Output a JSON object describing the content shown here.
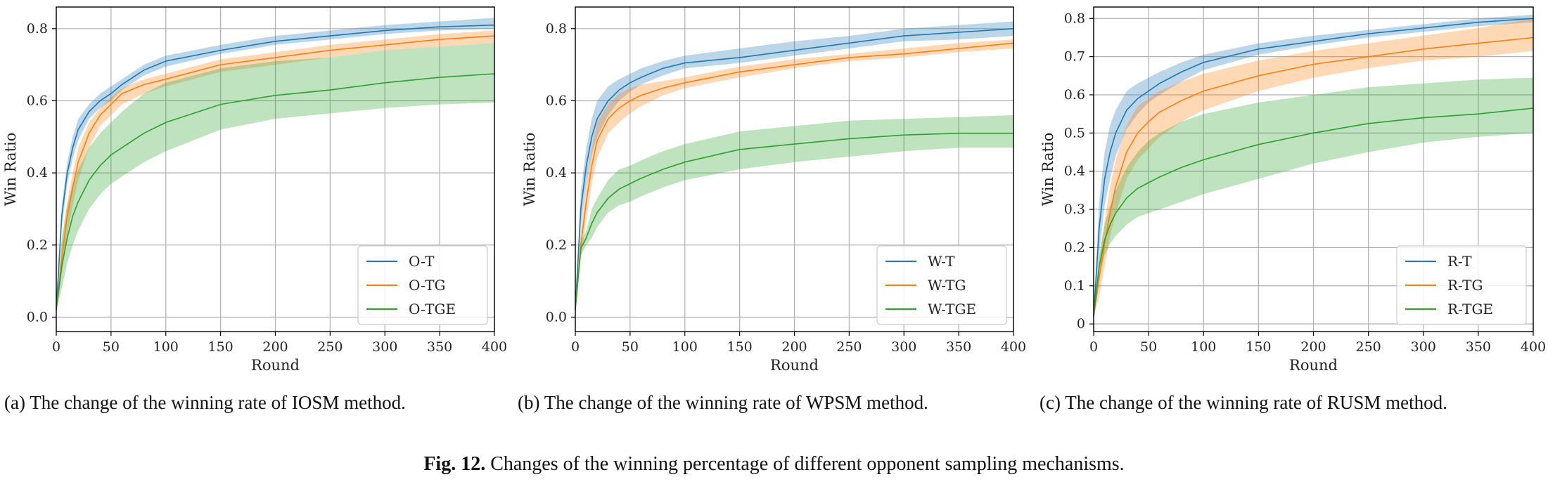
{
  "colors": {
    "T": "#1f77b4",
    "TG": "#ff7f0e",
    "TGE": "#2ca02c",
    "grid": "#b0b0b0",
    "axes": "#000000"
  },
  "chart_data": [
    {
      "type": "line",
      "panel": "a",
      "xlabel": "Round",
      "ylabel": "Win Ratio",
      "xlim": [
        0,
        400
      ],
      "ylim": [
        -0.04,
        0.86
      ],
      "xticks": [
        0,
        50,
        100,
        150,
        200,
        250,
        300,
        350,
        400
      ],
      "yticks": [
        0.0,
        0.2,
        0.4,
        0.6,
        0.8
      ],
      "ytick_labels": [
        "0.0",
        "0.2",
        "0.4",
        "0.6",
        "0.8"
      ],
      "legend_position": "bottom-right",
      "series": [
        {
          "name": "O-T",
          "key": "T",
          "x": [
            0,
            5,
            10,
            15,
            20,
            30,
            40,
            50,
            60,
            80,
            100,
            150,
            200,
            250,
            300,
            350,
            400
          ],
          "y": [
            0.02,
            0.28,
            0.4,
            0.47,
            0.52,
            0.57,
            0.6,
            0.62,
            0.645,
            0.685,
            0.71,
            0.74,
            0.765,
            0.78,
            0.795,
            0.805,
            0.81
          ],
          "lower": [
            0.02,
            0.25,
            0.37,
            0.44,
            0.49,
            0.55,
            0.58,
            0.6,
            0.63,
            0.67,
            0.695,
            0.73,
            0.755,
            0.77,
            0.785,
            0.795,
            0.8
          ],
          "upper": [
            0.02,
            0.31,
            0.43,
            0.5,
            0.55,
            0.59,
            0.62,
            0.64,
            0.66,
            0.7,
            0.725,
            0.755,
            0.78,
            0.795,
            0.81,
            0.82,
            0.83
          ]
        },
        {
          "name": "O-TG",
          "key": "TG",
          "x": [
            0,
            5,
            10,
            15,
            20,
            30,
            40,
            50,
            60,
            80,
            100,
            150,
            200,
            250,
            300,
            350,
            400
          ],
          "y": [
            0.02,
            0.16,
            0.28,
            0.36,
            0.43,
            0.51,
            0.56,
            0.59,
            0.62,
            0.645,
            0.66,
            0.7,
            0.72,
            0.74,
            0.755,
            0.77,
            0.78
          ],
          "lower": [
            0.02,
            0.12,
            0.23,
            0.31,
            0.38,
            0.47,
            0.53,
            0.56,
            0.59,
            0.62,
            0.64,
            0.68,
            0.7,
            0.72,
            0.74,
            0.75,
            0.76
          ],
          "upper": [
            0.02,
            0.2,
            0.32,
            0.4,
            0.47,
            0.54,
            0.58,
            0.61,
            0.635,
            0.66,
            0.675,
            0.715,
            0.735,
            0.755,
            0.77,
            0.785,
            0.795
          ]
        },
        {
          "name": "O-TGE",
          "key": "TGE",
          "x": [
            0,
            5,
            10,
            15,
            20,
            30,
            40,
            50,
            60,
            80,
            100,
            150,
            200,
            250,
            300,
            350,
            400
          ],
          "y": [
            0.02,
            0.14,
            0.22,
            0.28,
            0.32,
            0.38,
            0.42,
            0.45,
            0.47,
            0.51,
            0.54,
            0.59,
            0.615,
            0.63,
            0.65,
            0.665,
            0.675
          ],
          "lower": [
            0.02,
            0.08,
            0.15,
            0.2,
            0.24,
            0.3,
            0.34,
            0.37,
            0.39,
            0.43,
            0.46,
            0.52,
            0.55,
            0.565,
            0.58,
            0.59,
            0.595
          ],
          "upper": [
            0.02,
            0.22,
            0.31,
            0.37,
            0.41,
            0.47,
            0.51,
            0.54,
            0.57,
            0.62,
            0.65,
            0.69,
            0.71,
            0.72,
            0.74,
            0.75,
            0.76
          ]
        }
      ]
    },
    {
      "type": "line",
      "panel": "b",
      "xlabel": "Round",
      "ylabel": "Win Ratio",
      "xlim": [
        0,
        400
      ],
      "ylim": [
        -0.04,
        0.86
      ],
      "xticks": [
        0,
        50,
        100,
        150,
        200,
        250,
        300,
        350,
        400
      ],
      "yticks": [
        0.0,
        0.2,
        0.4,
        0.6,
        0.8
      ],
      "ytick_labels": [
        "0.0",
        "0.2",
        "0.4",
        "0.6",
        "0.8"
      ],
      "legend_position": "bottom-right",
      "series": [
        {
          "name": "W-T",
          "key": "T",
          "x": [
            0,
            5,
            10,
            15,
            20,
            30,
            40,
            50,
            60,
            80,
            100,
            150,
            200,
            250,
            300,
            350,
            400
          ],
          "y": [
            0.02,
            0.3,
            0.42,
            0.5,
            0.55,
            0.6,
            0.63,
            0.65,
            0.665,
            0.69,
            0.705,
            0.72,
            0.74,
            0.76,
            0.78,
            0.79,
            0.8
          ],
          "lower": [
            0.02,
            0.25,
            0.37,
            0.45,
            0.5,
            0.56,
            0.6,
            0.625,
            0.645,
            0.67,
            0.69,
            0.705,
            0.725,
            0.745,
            0.765,
            0.77,
            0.78
          ],
          "upper": [
            0.02,
            0.35,
            0.47,
            0.55,
            0.6,
            0.64,
            0.66,
            0.675,
            0.69,
            0.71,
            0.725,
            0.745,
            0.765,
            0.78,
            0.8,
            0.81,
            0.82
          ]
        },
        {
          "name": "W-TG",
          "key": "TG",
          "x": [
            0,
            5,
            10,
            15,
            20,
            30,
            40,
            50,
            60,
            80,
            100,
            150,
            200,
            250,
            300,
            350,
            400
          ],
          "y": [
            0.02,
            0.2,
            0.32,
            0.42,
            0.49,
            0.55,
            0.58,
            0.6,
            0.615,
            0.635,
            0.65,
            0.68,
            0.7,
            0.72,
            0.73,
            0.745,
            0.76
          ],
          "lower": [
            0.02,
            0.16,
            0.27,
            0.37,
            0.44,
            0.51,
            0.54,
            0.565,
            0.585,
            0.615,
            0.635,
            0.665,
            0.69,
            0.71,
            0.72,
            0.735,
            0.745
          ],
          "upper": [
            0.02,
            0.24,
            0.37,
            0.47,
            0.54,
            0.59,
            0.62,
            0.635,
            0.645,
            0.655,
            0.665,
            0.695,
            0.715,
            0.73,
            0.745,
            0.76,
            0.77
          ]
        },
        {
          "name": "W-TGE",
          "key": "TGE",
          "x": [
            0,
            5,
            10,
            15,
            20,
            30,
            40,
            50,
            60,
            80,
            100,
            150,
            200,
            250,
            300,
            350,
            400
          ],
          "y": [
            0.02,
            0.19,
            0.22,
            0.26,
            0.29,
            0.33,
            0.355,
            0.37,
            0.385,
            0.41,
            0.43,
            0.465,
            0.48,
            0.495,
            0.505,
            0.51,
            0.51
          ],
          "lower": [
            0.02,
            0.17,
            0.2,
            0.22,
            0.25,
            0.29,
            0.31,
            0.32,
            0.335,
            0.36,
            0.38,
            0.41,
            0.43,
            0.445,
            0.46,
            0.47,
            0.47
          ],
          "upper": [
            0.02,
            0.21,
            0.24,
            0.3,
            0.33,
            0.38,
            0.41,
            0.42,
            0.435,
            0.46,
            0.48,
            0.515,
            0.53,
            0.545,
            0.55,
            0.555,
            0.56
          ]
        }
      ]
    },
    {
      "type": "line",
      "panel": "c",
      "xlabel": "Round",
      "ylabel": "Win Ratio",
      "xlim": [
        0,
        400
      ],
      "ylim": [
        -0.02,
        0.83
      ],
      "xticks": [
        0,
        50,
        100,
        150,
        200,
        250,
        300,
        350,
        400
      ],
      "yticks": [
        0.0,
        0.1,
        0.2,
        0.3,
        0.4,
        0.5,
        0.6,
        0.7,
        0.8
      ],
      "ytick_labels": [
        "0",
        "0.1",
        "0.2",
        "0.3",
        "0.4",
        "0.5",
        "0.6",
        "0.7",
        "0.8"
      ],
      "legend_position": "bottom-right",
      "series": [
        {
          "name": "R-T",
          "key": "T",
          "x": [
            0,
            5,
            10,
            15,
            20,
            30,
            40,
            50,
            60,
            80,
            100,
            150,
            200,
            250,
            300,
            350,
            400
          ],
          "y": [
            0.02,
            0.25,
            0.38,
            0.45,
            0.5,
            0.56,
            0.59,
            0.61,
            0.63,
            0.66,
            0.685,
            0.72,
            0.74,
            0.76,
            0.775,
            0.79,
            0.8
          ],
          "lower": [
            0.02,
            0.18,
            0.31,
            0.38,
            0.44,
            0.51,
            0.55,
            0.58,
            0.6,
            0.635,
            0.665,
            0.705,
            0.73,
            0.75,
            0.765,
            0.78,
            0.79
          ],
          "upper": [
            0.02,
            0.32,
            0.45,
            0.52,
            0.56,
            0.61,
            0.63,
            0.645,
            0.66,
            0.685,
            0.705,
            0.735,
            0.755,
            0.77,
            0.785,
            0.8,
            0.81
          ]
        },
        {
          "name": "R-TG",
          "key": "TG",
          "x": [
            0,
            5,
            10,
            15,
            20,
            30,
            40,
            50,
            60,
            80,
            100,
            150,
            200,
            250,
            300,
            350,
            400
          ],
          "y": [
            0.02,
            0.12,
            0.21,
            0.29,
            0.36,
            0.45,
            0.5,
            0.53,
            0.555,
            0.585,
            0.61,
            0.65,
            0.68,
            0.7,
            0.72,
            0.735,
            0.75
          ],
          "lower": [
            0.02,
            0.07,
            0.15,
            0.23,
            0.29,
            0.38,
            0.43,
            0.46,
            0.49,
            0.53,
            0.56,
            0.61,
            0.645,
            0.67,
            0.69,
            0.7,
            0.715
          ],
          "upper": [
            0.02,
            0.17,
            0.27,
            0.36,
            0.43,
            0.52,
            0.57,
            0.59,
            0.61,
            0.635,
            0.655,
            0.69,
            0.715,
            0.735,
            0.755,
            0.775,
            0.8
          ]
        },
        {
          "name": "R-TGE",
          "key": "TGE",
          "x": [
            0,
            5,
            10,
            15,
            20,
            30,
            40,
            50,
            60,
            80,
            100,
            150,
            200,
            250,
            300,
            350,
            400
          ],
          "y": [
            0.02,
            0.15,
            0.22,
            0.26,
            0.29,
            0.33,
            0.355,
            0.37,
            0.385,
            0.41,
            0.43,
            0.47,
            0.5,
            0.525,
            0.54,
            0.55,
            0.565
          ],
          "lower": [
            0.02,
            0.12,
            0.18,
            0.21,
            0.23,
            0.26,
            0.28,
            0.29,
            0.3,
            0.32,
            0.34,
            0.38,
            0.42,
            0.45,
            0.475,
            0.49,
            0.5
          ],
          "upper": [
            0.02,
            0.18,
            0.26,
            0.31,
            0.35,
            0.41,
            0.45,
            0.48,
            0.5,
            0.53,
            0.55,
            0.58,
            0.6,
            0.62,
            0.63,
            0.64,
            0.645
          ]
        }
      ]
    }
  ],
  "captions": {
    "a": "(a)  The change of the winning rate of IOSM method.",
    "b": "(b)  The change of the winning rate of WPSM method.",
    "c": "(c)  The change of the winning rate of RUSM method.",
    "figure_label": "Fig. 12.",
    "figure_text": "Changes of the winning percentage of different opponent sampling mechanisms."
  }
}
